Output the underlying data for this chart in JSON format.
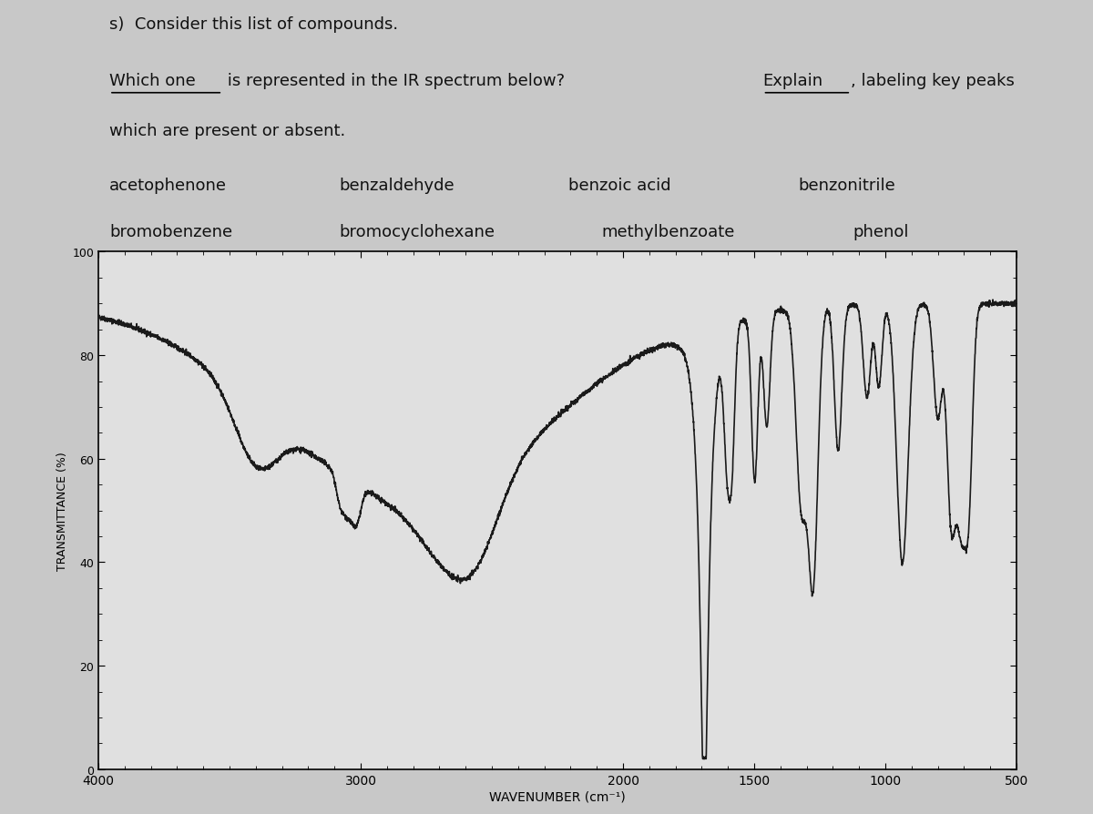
{
  "title_line1": "s)  Consider this list of compounds.",
  "title_line2_part1": "Which one",
  "title_line2_mid": " is represented in the IR spectrum below?  ",
  "title_line2_explain": "Explain",
  "title_line2_end": ", labeling key peaks",
  "title_line3": "which are present or absent.",
  "compounds_row1": [
    "acetophenone",
    "benzaldehyde",
    "benzoic acid",
    "benzonitrile"
  ],
  "compounds_row2": [
    "bromobenzene",
    "bromocyclohexane",
    "methylbenzoate",
    "phenol"
  ],
  "xlabel": "WAVENUMBER (cm-1)",
  "ylabel": "TRANSMITTANCE (%)",
  "xmin": 4000,
  "xmax": 500,
  "ymin": 0,
  "ymax": 100,
  "xticks": [
    4000,
    3000,
    2000,
    1500,
    1000,
    500
  ],
  "xtick_labels": [
    "4000",
    "3000",
    "2000",
    "1500",
    "1000",
    "500"
  ],
  "yticks": [
    0,
    20,
    40,
    60,
    80,
    100
  ],
  "background_color": "#c8c8c8",
  "plot_bg_color": "#e0e0e0",
  "line_color": "#1a1a1a",
  "text_color": "#111111"
}
